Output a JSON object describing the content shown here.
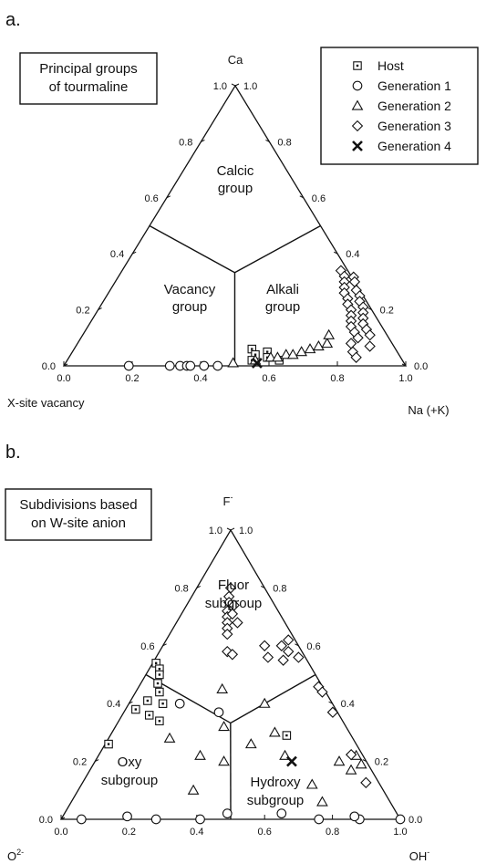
{
  "chart_data": [
    {
      "type": "scatter",
      "panel": "a.",
      "title_lines": [
        "Principal groups",
        "of tourmaline"
      ],
      "apex_labels": {
        "top": "Ca",
        "left": "X-site vacancy",
        "right": "Na (+K)"
      },
      "field_labels": [
        {
          "lines": [
            "Calcic",
            "group"
          ]
        },
        {
          "lines": [
            "Vacancy",
            "group"
          ]
        },
        {
          "lines": [
            "Alkali",
            "group"
          ]
        }
      ],
      "ticks": {
        "bottom": [
          "0.0",
          "0.2",
          "0.4",
          "0.6",
          "0.8",
          "1.0"
        ],
        "left": [
          "1.0",
          "0.8",
          "0.6",
          "0.4",
          "0.2",
          "0.0"
        ],
        "right": [
          "0.0",
          "0.2",
          "0.4",
          "0.6",
          "0.8",
          "1.0"
        ]
      },
      "boundaries": [
        {
          "from": {
            "top": 0.5,
            "right": 0.0
          },
          "to": {
            "top": 0.333,
            "right": 0.333
          }
        },
        {
          "from": {
            "top": 0.5,
            "right": 0.5
          },
          "to": {
            "top": 0.333,
            "right": 0.333
          }
        },
        {
          "from": {
            "top": 0.0,
            "right": 0.5
          },
          "to": {
            "top": 0.333,
            "right": 0.333
          }
        }
      ],
      "legend": [
        {
          "name": "Host",
          "marker": "square"
        },
        {
          "name": "Generation 1",
          "marker": "circle"
        },
        {
          "name": "Generation 2",
          "marker": "triangle"
        },
        {
          "name": "Generation 3",
          "marker": "diamond"
        },
        {
          "name": "Generation 4",
          "marker": "x"
        }
      ],
      "series": [
        {
          "name": "Host",
          "marker": "square",
          "points": [
            {
              "top": 0.06,
              "right": 0.52
            },
            {
              "top": 0.04,
              "right": 0.54
            },
            {
              "top": 0.02,
              "right": 0.54
            },
            {
              "top": 0.05,
              "right": 0.57
            },
            {
              "top": 0.03,
              "right": 0.58
            },
            {
              "top": 0.02,
              "right": 0.62
            }
          ]
        },
        {
          "name": "Generation 1",
          "marker": "circle",
          "points": [
            {
              "top": 0.0,
              "right": 0.19
            },
            {
              "top": 0.0,
              "right": 0.31
            },
            {
              "top": 0.0,
              "right": 0.34
            },
            {
              "top": 0.0,
              "right": 0.36
            },
            {
              "top": 0.0,
              "right": 0.37
            },
            {
              "top": 0.0,
              "right": 0.41
            },
            {
              "top": 0.0,
              "right": 0.45
            }
          ]
        },
        {
          "name": "Generation 2",
          "marker": "triangle",
          "points": [
            {
              "top": 0.01,
              "right": 0.49
            },
            {
              "top": 0.02,
              "right": 0.55
            },
            {
              "top": 0.03,
              "right": 0.59
            },
            {
              "top": 0.03,
              "right": 0.61
            },
            {
              "top": 0.04,
              "right": 0.63
            },
            {
              "top": 0.04,
              "right": 0.65
            },
            {
              "top": 0.05,
              "right": 0.67
            },
            {
              "top": 0.06,
              "right": 0.69
            },
            {
              "top": 0.07,
              "right": 0.71
            },
            {
              "top": 0.08,
              "right": 0.73
            },
            {
              "top": 0.11,
              "right": 0.72
            }
          ]
        },
        {
          "name": "Generation 3",
          "marker": "diamond",
          "points": [
            {
              "top": 0.34,
              "right": 0.64
            },
            {
              "top": 0.32,
              "right": 0.66
            },
            {
              "top": 0.3,
              "right": 0.67
            },
            {
              "top": 0.33,
              "right": 0.68
            },
            {
              "top": 0.28,
              "right": 0.68
            },
            {
              "top": 0.3,
              "right": 0.7
            },
            {
              "top": 0.26,
              "right": 0.69
            },
            {
              "top": 0.24,
              "right": 0.71
            },
            {
              "top": 0.27,
              "right": 0.72
            },
            {
              "top": 0.22,
              "right": 0.72
            },
            {
              "top": 0.25,
              "right": 0.74
            },
            {
              "top": 0.2,
              "right": 0.74
            },
            {
              "top": 0.23,
              "right": 0.75
            },
            {
              "top": 0.18,
              "right": 0.75
            },
            {
              "top": 0.21,
              "right": 0.77
            },
            {
              "top": 0.16,
              "right": 0.76
            },
            {
              "top": 0.19,
              "right": 0.78
            },
            {
              "top": 0.14,
              "right": 0.77
            },
            {
              "top": 0.17,
              "right": 0.79
            },
            {
              "top": 0.12,
              "right": 0.79
            },
            {
              "top": 0.15,
              "right": 0.8
            },
            {
              "top": 0.1,
              "right": 0.81
            },
            {
              "top": 0.13,
              "right": 0.82
            },
            {
              "top": 0.08,
              "right": 0.8
            },
            {
              "top": 0.05,
              "right": 0.82
            },
            {
              "top": 0.03,
              "right": 0.84
            },
            {
              "top": 0.11,
              "right": 0.84
            },
            {
              "top": 0.07,
              "right": 0.86
            }
          ]
        },
        {
          "name": "Generation 4",
          "marker": "x",
          "points": [
            {
              "top": 0.01,
              "right": 0.56
            }
          ]
        }
      ]
    },
    {
      "type": "scatter",
      "panel": "b.",
      "title_lines": [
        "Subdivisions based",
        "on W-site anion"
      ],
      "apex_labels": {
        "top": "F",
        "top_sup": "-",
        "left": "O",
        "left_sup": "2-",
        "right": "OH",
        "right_sup": "-"
      },
      "field_labels": [
        {
          "lines": [
            "Fluor",
            "subgroup"
          ]
        },
        {
          "lines": [
            "Oxy",
            "subgroup"
          ]
        },
        {
          "lines": [
            "Hydroxy",
            "subgroup"
          ]
        }
      ],
      "ticks": {
        "bottom": [
          "0.0",
          "0.2",
          "0.4",
          "0.6",
          "0.8",
          "1.0"
        ],
        "left": [
          "1.0",
          "0.8",
          "0.6",
          "0.4",
          "0.2",
          "0.0"
        ],
        "right": [
          "0.0",
          "0.2",
          "0.4",
          "0.6",
          "0.8",
          "1.0"
        ]
      },
      "boundaries": [
        {
          "from": {
            "top": 0.5,
            "right": 0.0
          },
          "to": {
            "top": 0.333,
            "right": 0.333
          }
        },
        {
          "from": {
            "top": 0.5,
            "right": 0.5
          },
          "to": {
            "top": 0.333,
            "right": 0.333
          }
        },
        {
          "from": {
            "top": 0.0,
            "right": 0.5
          },
          "to": {
            "top": 0.333,
            "right": 0.333
          }
        }
      ],
      "series": [
        {
          "name": "Host",
          "marker": "square",
          "points": [
            {
              "top": 0.54,
              "right": 0.01
            },
            {
              "top": 0.52,
              "right": 0.03
            },
            {
              "top": 0.5,
              "right": 0.04
            },
            {
              "top": 0.47,
              "right": 0.05
            },
            {
              "top": 0.44,
              "right": 0.07
            },
            {
              "top": 0.41,
              "right": 0.05
            },
            {
              "top": 0.4,
              "right": 0.1
            },
            {
              "top": 0.38,
              "right": 0.03
            },
            {
              "top": 0.36,
              "right": 0.08
            },
            {
              "top": 0.34,
              "right": 0.12
            },
            {
              "top": 0.26,
              "right": 0.01
            },
            {
              "top": 0.29,
              "right": 0.52
            }
          ]
        },
        {
          "name": "Generation 1",
          "marker": "circle",
          "points": [
            {
              "top": 0.0,
              "right": 0.06
            },
            {
              "top": 0.01,
              "right": 0.19
            },
            {
              "top": 0.0,
              "right": 0.28
            },
            {
              "top": 0.0,
              "right": 0.41
            },
            {
              "top": 0.02,
              "right": 0.48
            },
            {
              "top": 0.0,
              "right": 0.76
            },
            {
              "top": 0.0,
              "right": 0.88
            },
            {
              "top": 0.0,
              "right": 1.0
            },
            {
              "top": 0.4,
              "right": 0.15
            },
            {
              "top": 0.37,
              "right": 0.28
            },
            {
              "top": 0.02,
              "right": 0.64
            },
            {
              "top": 0.01,
              "right": 0.86
            }
          ]
        },
        {
          "name": "Generation 2",
          "marker": "triangle",
          "points": [
            {
              "top": 0.45,
              "right": 0.25
            },
            {
              "top": 0.28,
              "right": 0.18
            },
            {
              "top": 0.32,
              "right": 0.32
            },
            {
              "top": 0.22,
              "right": 0.3
            },
            {
              "top": 0.1,
              "right": 0.34
            },
            {
              "top": 0.2,
              "right": 0.38
            },
            {
              "top": 0.26,
              "right": 0.43
            },
            {
              "top": 0.3,
              "right": 0.48
            },
            {
              "top": 0.4,
              "right": 0.4
            },
            {
              "top": 0.22,
              "right": 0.55
            },
            {
              "top": 0.12,
              "right": 0.68
            },
            {
              "top": 0.06,
              "right": 0.74
            },
            {
              "top": 0.2,
              "right": 0.72
            },
            {
              "top": 0.17,
              "right": 0.77
            },
            {
              "top": 0.22,
              "right": 0.76
            },
            {
              "top": 0.19,
              "right": 0.79
            }
          ]
        },
        {
          "name": "Generation 3",
          "marker": "diamond",
          "points": [
            {
              "top": 0.8,
              "right": 0.1
            },
            {
              "top": 0.77,
              "right": 0.11
            },
            {
              "top": 0.75,
              "right": 0.12
            },
            {
              "top": 0.72,
              "right": 0.13
            },
            {
              "top": 0.7,
              "right": 0.14
            },
            {
              "top": 0.68,
              "right": 0.15
            },
            {
              "top": 0.66,
              "right": 0.16
            },
            {
              "top": 0.64,
              "right": 0.17
            },
            {
              "top": 0.74,
              "right": 0.14
            },
            {
              "top": 0.71,
              "right": 0.15
            },
            {
              "top": 0.68,
              "right": 0.18
            },
            {
              "top": 0.58,
              "right": 0.2
            },
            {
              "top": 0.57,
              "right": 0.22
            },
            {
              "top": 0.6,
              "right": 0.3
            },
            {
              "top": 0.56,
              "right": 0.33
            },
            {
              "top": 0.6,
              "right": 0.35
            },
            {
              "top": 0.58,
              "right": 0.38
            },
            {
              "top": 0.55,
              "right": 0.38
            },
            {
              "top": 0.62,
              "right": 0.36
            },
            {
              "top": 0.56,
              "right": 0.42
            },
            {
              "top": 0.6,
              "right": 0.45
            },
            {
              "top": 0.62,
              "right": 0.52
            },
            {
              "top": 0.58,
              "right": 0.58
            },
            {
              "top": 0.54,
              "right": 0.52
            },
            {
              "top": 0.44,
              "right": 0.55
            }
          ]
        },
        {
          "name": "Generation 4",
          "marker": "x",
          "points": [
            {
              "top": 0.2,
              "right": 0.58
            }
          ]
        }
      ]
    }
  ]
}
